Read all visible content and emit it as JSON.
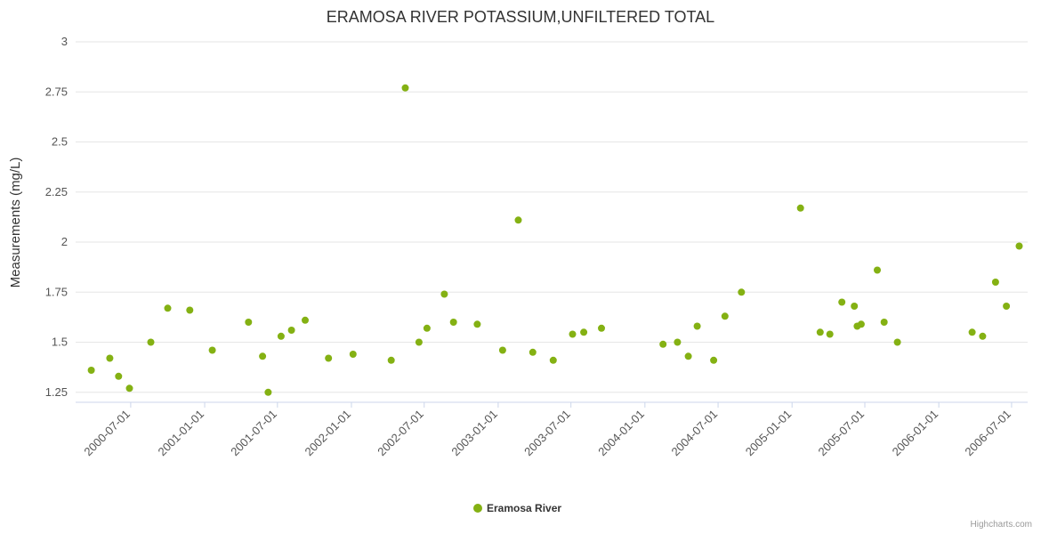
{
  "title": "ERAMOSA RIVER POTASSIUM,UNFILTERED TOTAL",
  "credits": "Highcharts.com",
  "legend": {
    "series_label": "Eramosa River",
    "marker_color": "#84b113"
  },
  "chart_data": {
    "type": "scatter",
    "title": "ERAMOSA RIVER POTASSIUM,UNFILTERED TOTAL",
    "xlabel": "",
    "ylabel": "Measurements (mg/L)",
    "ylim": [
      1.2,
      3.0
    ],
    "yticks": [
      1.25,
      1.5,
      1.75,
      2,
      2.25,
      2.5,
      2.75,
      3
    ],
    "xlim": [
      "2000-02-15",
      "2006-08-10"
    ],
    "xticks": [
      "2000-07-01",
      "2001-01-01",
      "2001-07-01",
      "2002-01-01",
      "2002-07-01",
      "2003-01-01",
      "2003-07-01",
      "2004-01-01",
      "2004-07-01",
      "2005-01-01",
      "2005-07-01",
      "2006-01-01",
      "2006-07-01"
    ],
    "grid": "horizontal",
    "legend_position": "bottom-center",
    "series": [
      {
        "name": "Eramosa River",
        "color": "#84b113",
        "marker_radius": 4,
        "points": [
          [
            "2000-03-25",
            1.36
          ],
          [
            "2000-05-10",
            1.42
          ],
          [
            "2000-06-01",
            1.33
          ],
          [
            "2000-06-28",
            1.27
          ],
          [
            "2000-08-20",
            1.5
          ],
          [
            "2000-10-01",
            1.67
          ],
          [
            "2000-11-25",
            1.66
          ],
          [
            "2001-01-20",
            1.46
          ],
          [
            "2001-04-20",
            1.6
          ],
          [
            "2001-05-25",
            1.43
          ],
          [
            "2001-06-08",
            1.25
          ],
          [
            "2001-07-10",
            1.53
          ],
          [
            "2001-08-05",
            1.56
          ],
          [
            "2001-09-08",
            1.61
          ],
          [
            "2001-11-05",
            1.42
          ],
          [
            "2002-01-05",
            1.44
          ],
          [
            "2002-04-10",
            1.41
          ],
          [
            "2002-05-15",
            2.77
          ],
          [
            "2002-06-18",
            1.5
          ],
          [
            "2002-07-08",
            1.57
          ],
          [
            "2002-08-20",
            1.74
          ],
          [
            "2002-09-12",
            1.6
          ],
          [
            "2002-11-10",
            1.59
          ],
          [
            "2003-01-12",
            1.46
          ],
          [
            "2003-02-20",
            2.11
          ],
          [
            "2003-03-28",
            1.45
          ],
          [
            "2003-05-18",
            1.41
          ],
          [
            "2003-07-05",
            1.54
          ],
          [
            "2003-08-02",
            1.55
          ],
          [
            "2003-09-15",
            1.57
          ],
          [
            "2004-02-15",
            1.49
          ],
          [
            "2004-03-22",
            1.5
          ],
          [
            "2004-04-18",
            1.43
          ],
          [
            "2004-05-10",
            1.58
          ],
          [
            "2004-06-20",
            1.41
          ],
          [
            "2004-07-18",
            1.63
          ],
          [
            "2004-08-28",
            1.75
          ],
          [
            "2005-01-22",
            2.17
          ],
          [
            "2005-03-12",
            1.55
          ],
          [
            "2005-04-05",
            1.54
          ],
          [
            "2005-05-05",
            1.7
          ],
          [
            "2005-06-05",
            1.68
          ],
          [
            "2005-06-12",
            1.58
          ],
          [
            "2005-06-22",
            1.59
          ],
          [
            "2005-08-01",
            1.86
          ],
          [
            "2005-08-18",
            1.6
          ],
          [
            "2005-09-20",
            1.5
          ],
          [
            "2006-03-25",
            1.55
          ],
          [
            "2006-04-20",
            1.53
          ],
          [
            "2006-05-22",
            1.8
          ],
          [
            "2006-06-18",
            1.68
          ],
          [
            "2006-07-20",
            1.98
          ]
        ]
      }
    ]
  }
}
